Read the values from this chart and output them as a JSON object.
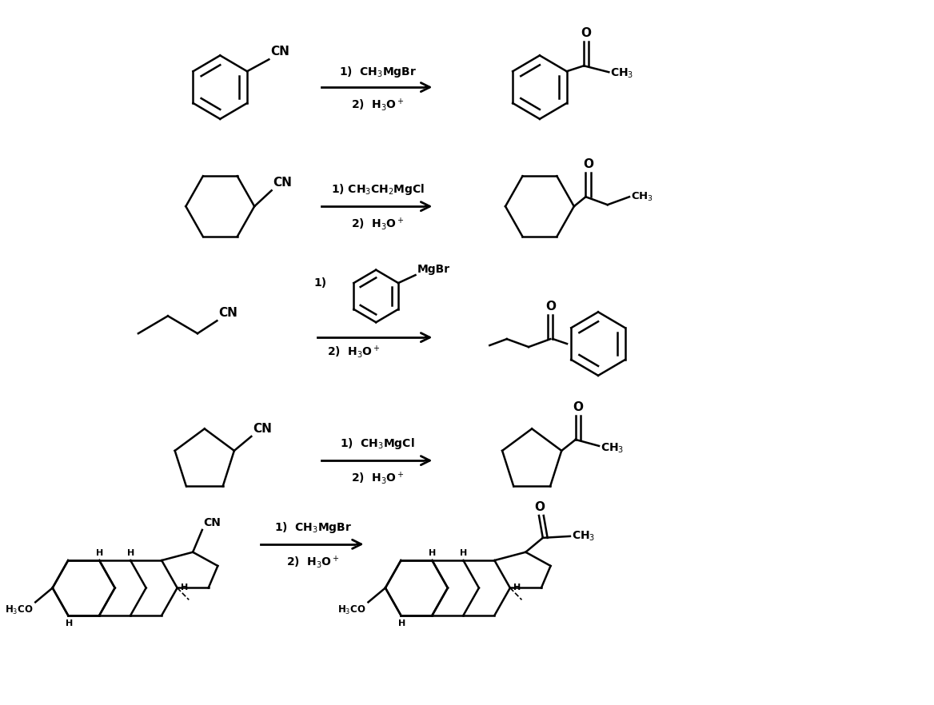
{
  "background_color": "#ffffff",
  "figsize": [
    11.68,
    8.82
  ],
  "dpi": 100,
  "lw": 1.8,
  "rows": [
    {
      "y": 7.75,
      "label1": "1)  CH$_3$MgBr",
      "label2": "2)  H$_3$O$^+$"
    },
    {
      "y": 6.25,
      "label1": "1) CH$_3$CH$_2$MgCl",
      "label2": "2)  H$_3$O$^+$"
    },
    {
      "y": 4.6,
      "label1": "1)",
      "label2": "2)  H$_3$O$^+$"
    },
    {
      "y": 3.05,
      "label1": "1)  CH$_3$MgCl",
      "label2": "2)  H$_3$O$^+$"
    },
    {
      "y": 1.5,
      "label1": "1)  CH$_3$MgBr",
      "label2": "2)  H$_3$O$^+$"
    }
  ]
}
